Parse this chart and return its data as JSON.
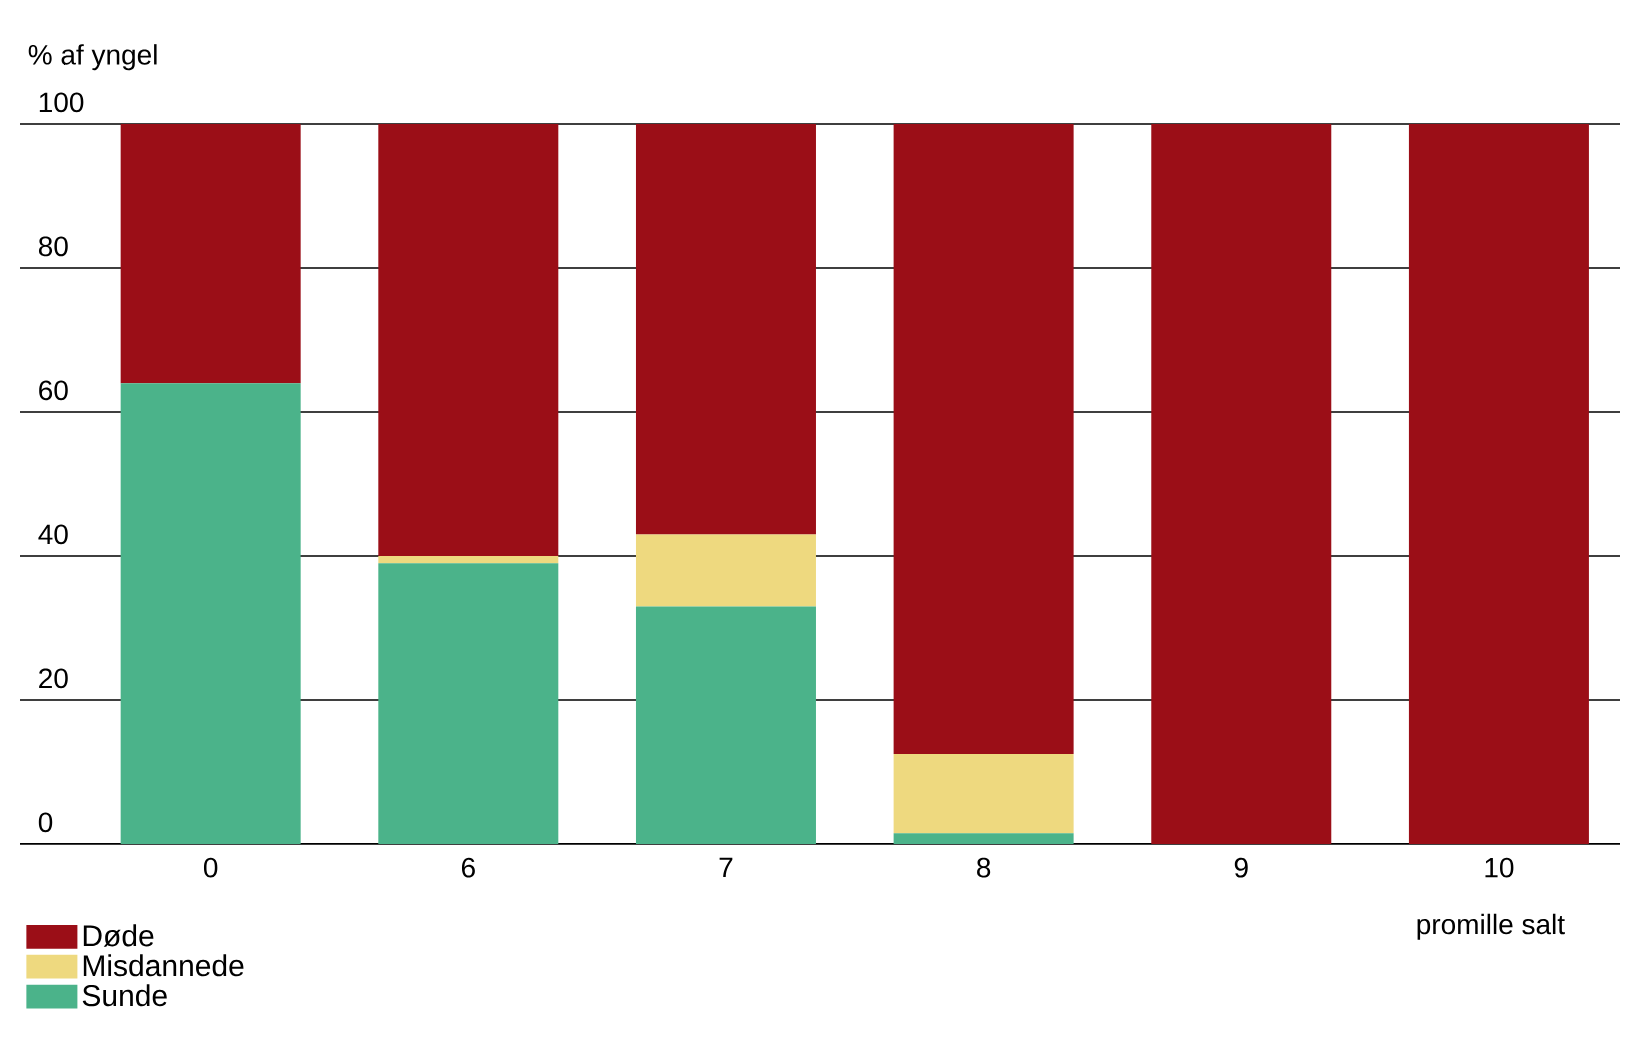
{
  "chart_data": {
    "type": "bar",
    "stacked": true,
    "ylabel": "% af yngel",
    "xlabel": "promille salt",
    "categories": [
      "0",
      "6",
      "7",
      "8",
      "9",
      "10"
    ],
    "series": [
      {
        "name": "Sunde",
        "color": "#4bb38a",
        "values": [
          64,
          39,
          33,
          1.5,
          0,
          0
        ]
      },
      {
        "name": "Misdannede",
        "color": "#eed97f",
        "values": [
          0,
          1,
          10,
          11,
          0,
          0
        ]
      },
      {
        "name": "Døde",
        "color": "#9b0e17",
        "values": [
          36,
          60,
          57,
          87.5,
          100,
          100
        ]
      }
    ],
    "ylim": [
      0,
      100
    ],
    "yticks": [
      0,
      20,
      40,
      60,
      80,
      100
    ],
    "grid": "y",
    "legend": "bottom left"
  }
}
